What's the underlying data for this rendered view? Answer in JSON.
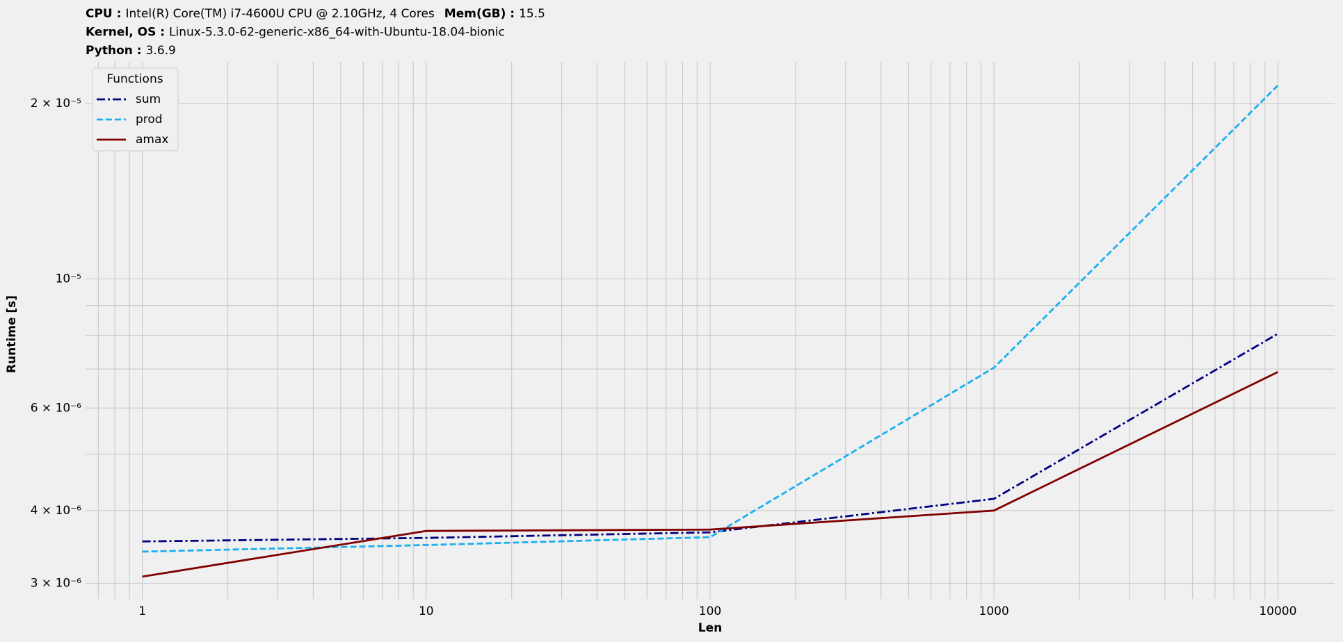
{
  "chart_data": {
    "type": "line",
    "header": [
      [
        {
          "label": "CPU :",
          "value": "Intel(R) Core(TM) i7-4600U CPU @ 2.10GHz, 4 Cores"
        },
        {
          "label": "Mem(GB) :",
          "value": "15.5"
        }
      ],
      [
        {
          "label": "Kernel, OS :",
          "value": "Linux-5.3.0-62-generic-x86_64-with-Ubuntu-18.04-bionic"
        }
      ],
      [
        {
          "label": "Python :",
          "value": "3.6.9"
        }
      ]
    ],
    "xlabel": "Len",
    "ylabel": "Runtime [s]",
    "x": [
      1,
      10,
      100,
      1000,
      10000
    ],
    "series": [
      {
        "name": "sum",
        "color": "#000080",
        "linestyle": "dashdot",
        "values": [
          3.54e-06,
          3.59e-06,
          3.67e-06,
          4.19e-06,
          8.05e-06
        ]
      },
      {
        "name": "prod",
        "color": "#1aaff0",
        "linestyle": "dashed",
        "values": [
          3.4e-06,
          3.49e-06,
          3.6e-06,
          7.04e-06,
          2.15e-05
        ]
      },
      {
        "name": "amax",
        "color": "#800000",
        "linestyle": "solid",
        "values": [
          3.08e-06,
          3.69e-06,
          3.71e-06,
          4e-06,
          6.92e-06
        ]
      }
    ],
    "legend_title": "Functions",
    "legend": "upper left",
    "xscale": "log",
    "yscale": "log",
    "xlim": [
      0.631,
      15849
    ],
    "ylim": [
      2.82e-06,
      2.36e-05
    ],
    "xticks": [
      1,
      10,
      100,
      1000,
      10000
    ],
    "xminorticks": [
      0.7,
      0.8,
      0.9,
      2,
      3,
      4,
      5,
      6,
      7,
      8,
      9,
      20,
      30,
      40,
      50,
      60,
      70,
      80,
      90,
      200,
      300,
      400,
      500,
      600,
      700,
      800,
      900,
      2000,
      3000,
      4000,
      5000,
      6000,
      7000,
      8000,
      9000
    ],
    "yticks": [
      {
        "value": 3e-06,
        "label": "3 × 10⁻⁶"
      },
      {
        "value": 4e-06,
        "label": "4 × 10⁻⁶"
      },
      {
        "value": 6e-06,
        "label": "6 × 10⁻⁶"
      },
      {
        "value": 1e-05,
        "label": "10⁻⁵"
      },
      {
        "value": 2e-05,
        "label": "2 × 10⁻⁵"
      }
    ],
    "yminorticks": [
      5e-06,
      7e-06,
      8e-06,
      9e-06
    ],
    "grid": true,
    "grid_color": "#cbcbcb"
  }
}
